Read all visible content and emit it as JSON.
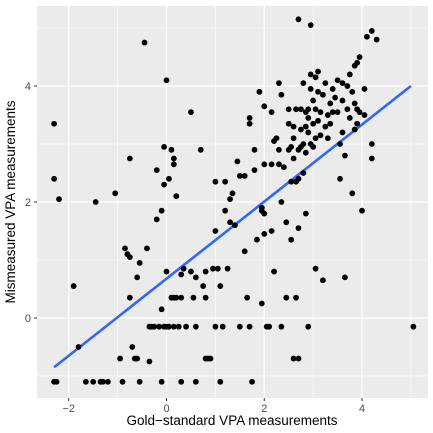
{
  "chart_data": {
    "type": "scatter",
    "title": "",
    "xlabel": "Gold−standard VPA measurements",
    "ylabel": "Mismeasured VPA measurements",
    "xlim": [
      -2.65,
      5.35
    ],
    "ylim": [
      -1.38,
      5.38
    ],
    "x_ticks": [
      -2,
      0,
      2,
      4
    ],
    "x_tick_labels": [
      "−2",
      "0",
      "2",
      "4"
    ],
    "y_ticks": [
      0,
      2,
      4
    ],
    "y_tick_labels": [
      "0",
      "2",
      "4"
    ],
    "grid": true,
    "legend": "none",
    "colors": {
      "panel": "#ebebeb",
      "grid_major": "#ffffff",
      "point": "#000000",
      "fit_line": "#3366ff"
    },
    "fit_line": {
      "x": [
        -2.3,
        5.0
      ],
      "y": [
        -0.85,
        4.0
      ]
    },
    "points": [
      [
        -2.3,
        3.35
      ],
      [
        -2.3,
        2.4
      ],
      [
        -2.3,
        -1.1
      ],
      [
        -2.25,
        -1.1
      ],
      [
        -2.2,
        2.05
      ],
      [
        -1.9,
        0.55
      ],
      [
        -1.8,
        -0.5
      ],
      [
        -1.65,
        -1.1
      ],
      [
        -1.5,
        -1.1
      ],
      [
        -1.45,
        2.0
      ],
      [
        -1.35,
        -1.1
      ],
      [
        -1.3,
        -1.1
      ],
      [
        -1.2,
        -1.1
      ],
      [
        -1.05,
        2.15
      ],
      [
        -0.95,
        -0.7
      ],
      [
        -0.9,
        -1.1
      ],
      [
        -0.85,
        1.2
      ],
      [
        -0.8,
        1.1
      ],
      [
        -0.75,
        2.75
      ],
      [
        -0.75,
        1.05
      ],
      [
        -0.75,
        0.35
      ],
      [
        -0.7,
        -0.5
      ],
      [
        -0.65,
        -0.7
      ],
      [
        -0.6,
        0.7
      ],
      [
        -0.6,
        -0.7
      ],
      [
        -0.55,
        0.95
      ],
      [
        -0.55,
        -1.1
      ],
      [
        -0.45,
        4.75
      ],
      [
        -0.4,
        1.2
      ],
      [
        -0.35,
        -0.75
      ],
      [
        -0.35,
        -0.15
      ],
      [
        -0.3,
        -0.15
      ],
      [
        -0.25,
        -0.15
      ],
      [
        -0.2,
        2.55
      ],
      [
        -0.2,
        1.7
      ],
      [
        -0.15,
        -0.15
      ],
      [
        -0.1,
        1.85
      ],
      [
        -0.1,
        0.15
      ],
      [
        -0.1,
        -1.1
      ],
      [
        -0.05,
        2.95
      ],
      [
        -0.05,
        2.3
      ],
      [
        -0.05,
        -0.15
      ],
      [
        0.0,
        4.1
      ],
      [
        0.0,
        0.8
      ],
      [
        0.0,
        -0.15
      ],
      [
        0.05,
        -0.15
      ],
      [
        0.05,
        2.4
      ],
      [
        0.1,
        2.9
      ],
      [
        0.1,
        0.35
      ],
      [
        0.15,
        2.75
      ],
      [
        0.15,
        2.65
      ],
      [
        0.15,
        0.35
      ],
      [
        0.15,
        -0.15
      ],
      [
        0.2,
        2.1
      ],
      [
        0.2,
        0.35
      ],
      [
        0.25,
        -0.15
      ],
      [
        0.3,
        0.75
      ],
      [
        0.3,
        0.35
      ],
      [
        0.3,
        -1.1
      ],
      [
        0.35,
        0.85
      ],
      [
        0.4,
        -0.15
      ],
      [
        0.5,
        3.55
      ],
      [
        0.5,
        0.8
      ],
      [
        0.55,
        0.35
      ],
      [
        0.6,
        0.7
      ],
      [
        0.6,
        -0.15
      ],
      [
        0.6,
        -1.1
      ],
      [
        0.7,
        2.9
      ],
      [
        0.75,
        0.55
      ],
      [
        0.8,
        0.8
      ],
      [
        0.8,
        0.35
      ],
      [
        0.8,
        -0.7
      ],
      [
        0.85,
        -0.7
      ],
      [
        0.9,
        -0.7
      ],
      [
        0.95,
        0.85
      ],
      [
        1.0,
        2.35
      ],
      [
        1.0,
        1.5
      ],
      [
        1.0,
        -0.15
      ],
      [
        1.05,
        0.85
      ],
      [
        1.1,
        0.55
      ],
      [
        1.1,
        -1.1
      ],
      [
        1.15,
        -0.15
      ],
      [
        1.2,
        2.35
      ],
      [
        1.2,
        1.85
      ],
      [
        1.25,
        0.85
      ],
      [
        1.3,
        1.65
      ],
      [
        1.3,
        2.05
      ],
      [
        1.35,
        2.15
      ],
      [
        1.4,
        1.6
      ],
      [
        1.45,
        2.7
      ],
      [
        1.5,
        2.45
      ],
      [
        1.5,
        -0.15
      ],
      [
        1.6,
        2.45
      ],
      [
        1.6,
        1.15
      ],
      [
        1.65,
        0.35
      ],
      [
        1.7,
        3.35
      ],
      [
        1.7,
        3.45
      ],
      [
        1.7,
        -0.15
      ],
      [
        1.75,
        -1.1
      ],
      [
        1.8,
        2.9
      ],
      [
        1.8,
        2.55
      ],
      [
        1.85,
        1.35
      ],
      [
        1.9,
        3.9
      ],
      [
        1.95,
        1.9
      ],
      [
        1.95,
        1.85
      ],
      [
        1.95,
        0.25
      ],
      [
        2.0,
        3.65
      ],
      [
        2.0,
        2.65
      ],
      [
        2.0,
        1.8
      ],
      [
        2.0,
        1.45
      ],
      [
        2.05,
        -0.15
      ],
      [
        2.1,
        -0.15
      ],
      [
        2.15,
        3.55
      ],
      [
        2.15,
        2.65
      ],
      [
        2.15,
        1.5
      ],
      [
        2.2,
        3.05
      ],
      [
        2.2,
        0.8
      ],
      [
        2.25,
        3.1
      ],
      [
        2.3,
        4.05
      ],
      [
        2.3,
        2.9
      ],
      [
        2.3,
        2.65
      ],
      [
        2.35,
        2.0
      ],
      [
        2.35,
        3.85
      ],
      [
        2.35,
        -0.15
      ],
      [
        2.4,
        2.6
      ],
      [
        2.45,
        1.65
      ],
      [
        2.45,
        0.35
      ],
      [
        2.5,
        3.6
      ],
      [
        2.5,
        3.35
      ],
      [
        2.5,
        2.9
      ],
      [
        2.55,
        2.95
      ],
      [
        2.55,
        2.35
      ],
      [
        2.55,
        1.35
      ],
      [
        2.6,
        3.3
      ],
      [
        2.6,
        3.1
      ],
      [
        2.6,
        2.75
      ],
      [
        2.6,
        -0.7
      ],
      [
        2.65,
        3.6
      ],
      [
        2.65,
        2.35
      ],
      [
        2.65,
        0.35
      ],
      [
        2.7,
        5.15
      ],
      [
        2.7,
        2.9
      ],
      [
        2.7,
        2.4
      ],
      [
        2.7,
        1.55
      ],
      [
        2.7,
        -0.7
      ],
      [
        2.75,
        3.25
      ],
      [
        2.75,
        3.6
      ],
      [
        2.75,
        2.95
      ],
      [
        2.8,
        4.05
      ],
      [
        2.8,
        3.0
      ],
      [
        2.8,
        2.5
      ],
      [
        2.85,
        3.55
      ],
      [
        2.85,
        3.3
      ],
      [
        2.85,
        2.85
      ],
      [
        2.85,
        1.8
      ],
      [
        2.9,
        3.2
      ],
      [
        2.9,
        3.45
      ],
      [
        2.9,
        3.6
      ],
      [
        2.9,
        -0.15
      ],
      [
        2.95,
        4.2
      ],
      [
        2.95,
        5.05
      ],
      [
        2.95,
        3.95
      ],
      [
        2.95,
        3.0
      ],
      [
        3.0,
        3.75
      ],
      [
        3.0,
        3.35
      ],
      [
        3.0,
        2.95
      ],
      [
        3.05,
        4.15
      ],
      [
        3.05,
        3.6
      ],
      [
        3.05,
        3.1
      ],
      [
        3.05,
        0.85
      ],
      [
        3.1,
        4.25
      ],
      [
        3.1,
        3.4
      ],
      [
        3.1,
        3.9
      ],
      [
        3.15,
        3.55
      ],
      [
        3.15,
        3.15
      ],
      [
        3.2,
        3.85
      ],
      [
        3.2,
        0.65
      ],
      [
        3.25,
        4.05
      ],
      [
        3.25,
        3.3
      ],
      [
        3.3,
        3.5
      ],
      [
        3.3,
        3.1
      ],
      [
        3.35,
        3.7
      ],
      [
        3.35,
        3.35
      ],
      [
        3.4,
        3.95
      ],
      [
        3.4,
        3.55
      ],
      [
        3.45,
        3.8
      ],
      [
        3.5,
        4.1
      ],
      [
        3.5,
        3.55
      ],
      [
        3.55,
        3.0
      ],
      [
        3.55,
        2.4
      ],
      [
        3.6,
        4.05
      ],
      [
        3.6,
        3.75
      ],
      [
        3.6,
        3.2
      ],
      [
        3.65,
        2.8
      ],
      [
        3.65,
        0.7
      ],
      [
        3.7,
        4.0
      ],
      [
        3.7,
        3.6
      ],
      [
        3.75,
        4.2
      ],
      [
        3.75,
        3.45
      ],
      [
        3.8,
        3.9
      ],
      [
        3.8,
        2.15
      ],
      [
        3.85,
        4.35
      ],
      [
        3.85,
        3.7
      ],
      [
        3.85,
        3.25
      ],
      [
        3.9,
        4.4
      ],
      [
        3.9,
        3.6
      ],
      [
        3.9,
        3.35
      ],
      [
        3.95,
        4.5
      ],
      [
        3.95,
        3.55
      ],
      [
        4.0,
        1.85
      ],
      [
        4.05,
        3.95
      ],
      [
        4.05,
        3.5
      ],
      [
        4.1,
        4.85
      ],
      [
        4.2,
        4.95
      ],
      [
        4.2,
        3.0
      ],
      [
        4.2,
        2.75
      ],
      [
        4.3,
        4.8
      ],
      [
        5.05,
        -0.15
      ]
    ]
  }
}
